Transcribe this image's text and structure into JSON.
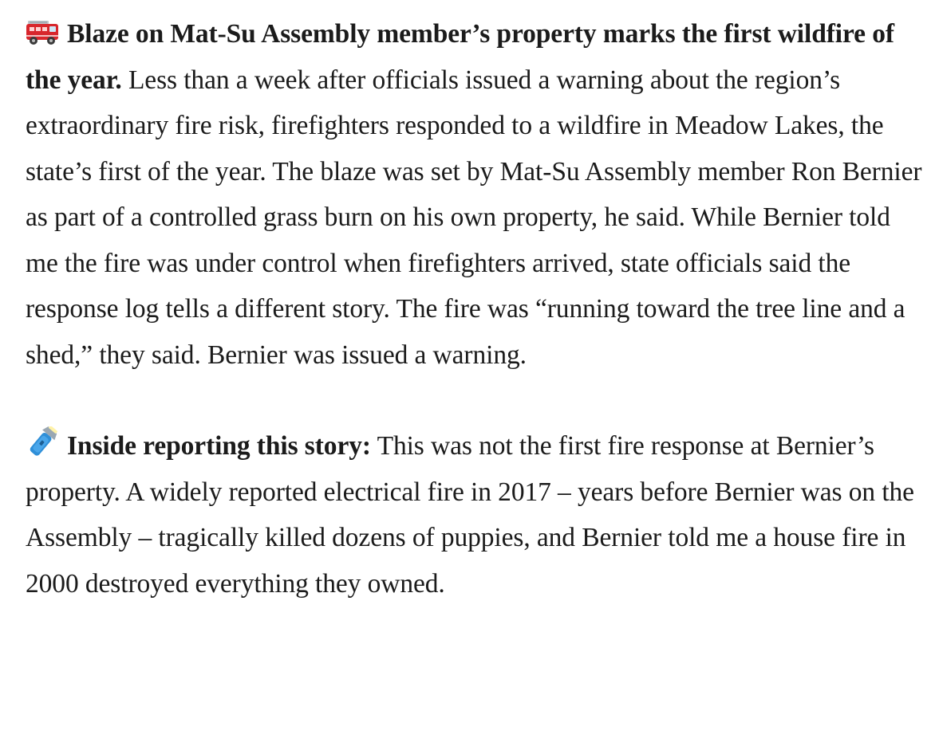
{
  "article": {
    "paragraphs": [
      {
        "icon": "fire-engine-icon",
        "lead": "Blaze on Mat-Su Assembly member’s property marks the first wildfire of the year.",
        "body": " Less than a week after officials issued a warning about the region’s extraordinary fire risk, firefighters responded to a wildfire in Meadow Lakes, the state’s first of the year. The blaze was set by Mat-Su Assembly member Ron Bernier as part of a controlled grass burn on his own property, he said. While Bernier told me the fire was under control when firefighters arrived, state officials said the response log tells a different story. The fire was “running toward the tree line and a shed,” they said. Bernier was issued a warning."
      },
      {
        "icon": "flashlight-icon",
        "lead": "Inside reporting this story:",
        "body": " This was not the first fire response at Bernier’s property. A widely reported electrical fire in 2017 – years before Bernier was on the Assembly – tragically killed dozens of puppies, and Bernier told me a house fire in 2000 destroyed everything they owned."
      }
    ]
  },
  "colors": {
    "text": "#1b1b1b",
    "background": "#ffffff",
    "fire_engine_red": "#d8262c",
    "flashlight_blue": "#2f8fd8"
  }
}
